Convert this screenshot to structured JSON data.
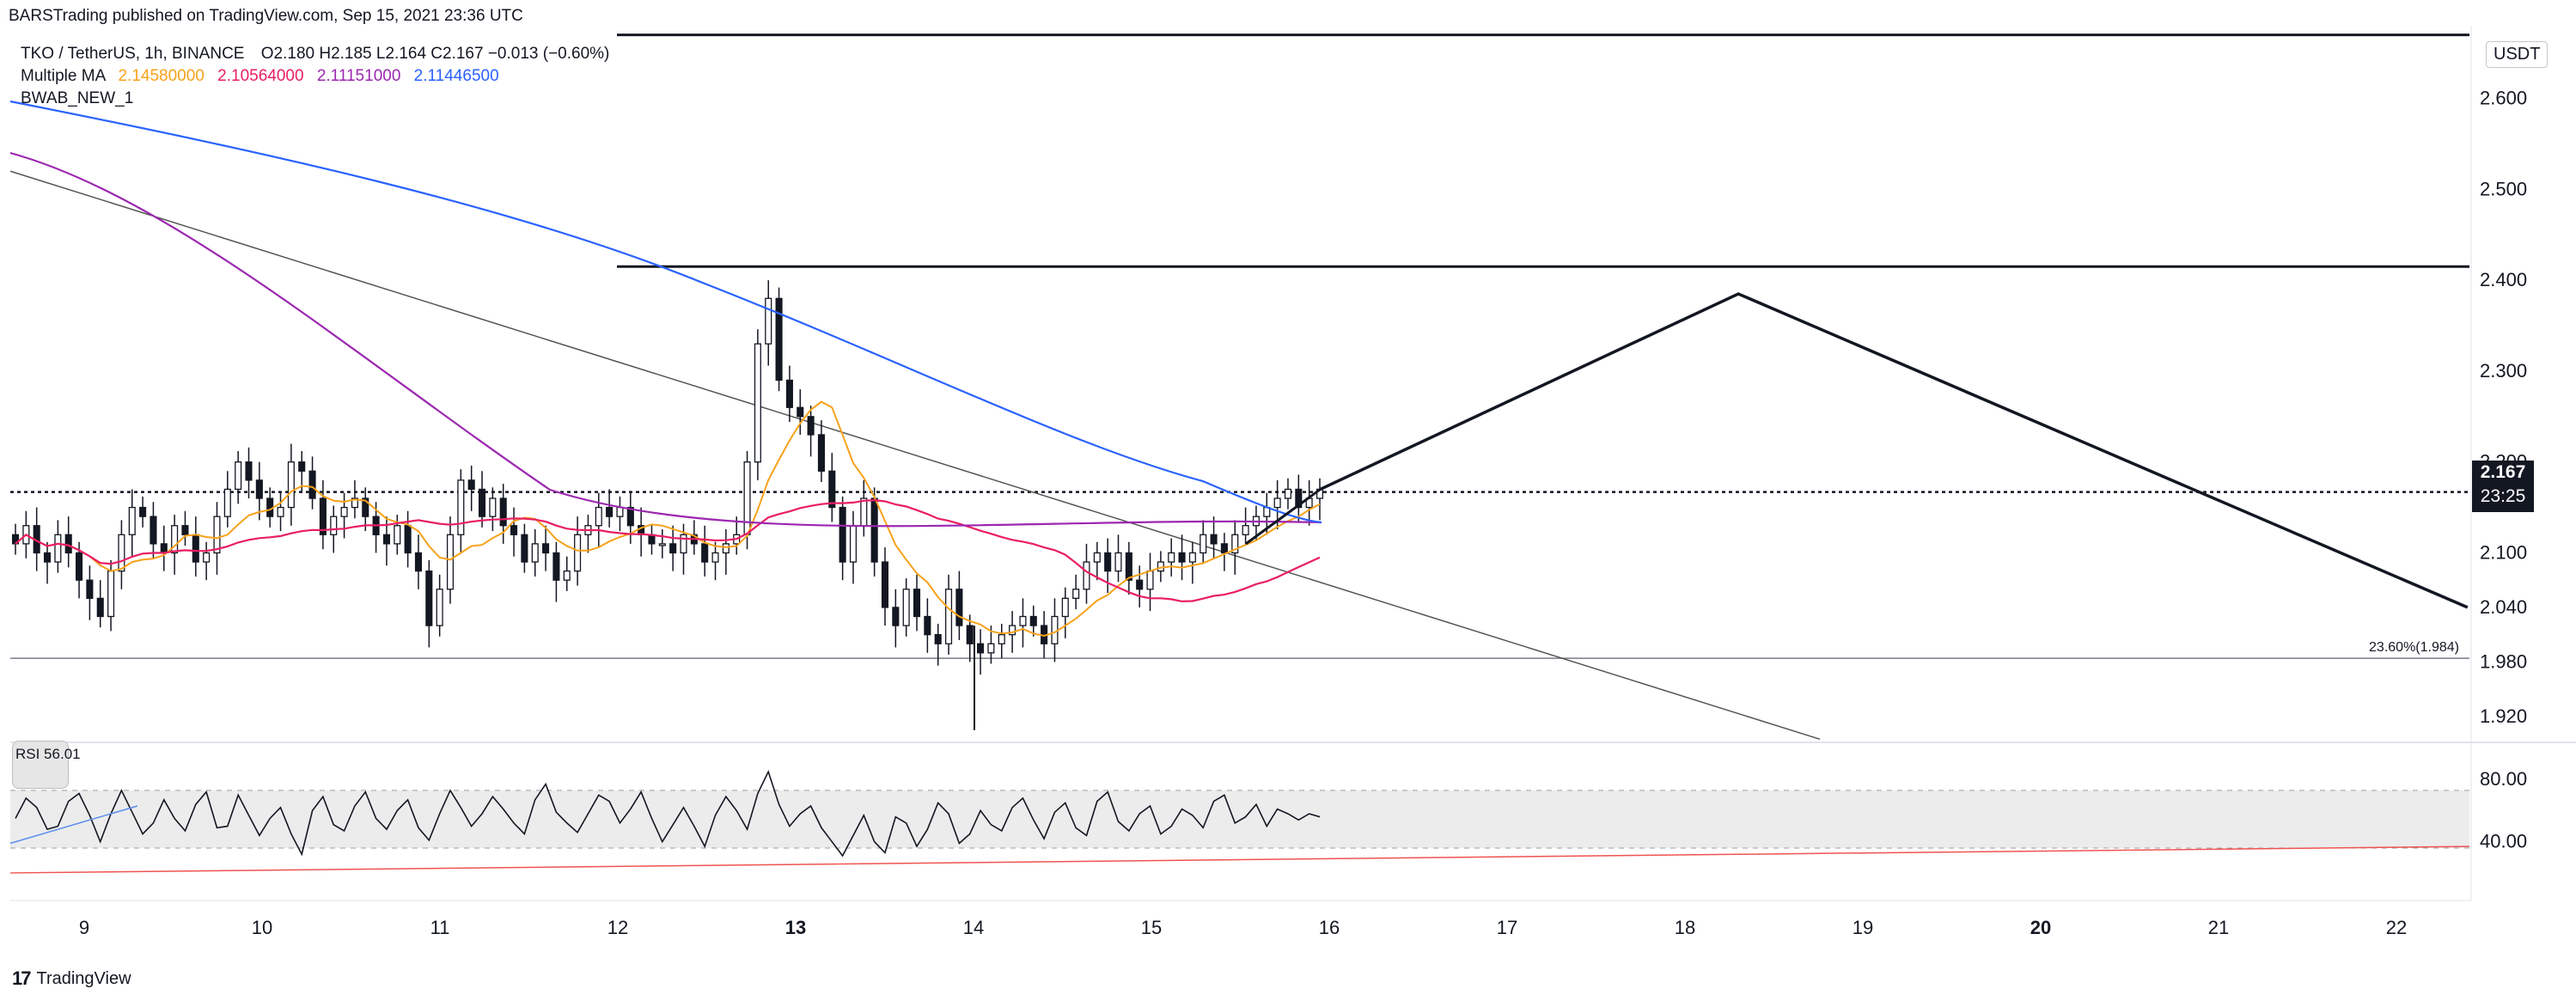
{
  "publisher_line": "BARSTrading published on TradingView.com, Sep 15, 2021 23:36 UTC",
  "symbol": {
    "name": "TKO / TetherUS, 1h, BINANCE",
    "ohlc": "O2.180 H2.185 L2.164 C2.167 −0.013 (−0.60%)"
  },
  "multiple_ma": {
    "label": "Multiple MA",
    "values": [
      "2.14580000",
      "2.10564000",
      "2.11151000",
      "2.11446500"
    ],
    "colors": [
      "#f7a21b",
      "#e91e63",
      "#9c27b0",
      "#2962ff"
    ]
  },
  "indicator_label": "BWAB_NEW_1",
  "rsi_label": "RSI 56.01",
  "currency": "USDT",
  "last_price": {
    "value": "2.167",
    "countdown": "23:25"
  },
  "fib_label": "23.60%(1.984)",
  "brand": {
    "mark": "17",
    "name": "TradingView"
  },
  "colors": {
    "ema_short": "#f7a21b",
    "ma_mid": "#e91e63",
    "ma_long": "#9c27b0",
    "ma_longest": "#2962ff",
    "candle": "#131722",
    "rsi_band": "#ececec"
  },
  "chart_data": [
    {
      "type": "candlestick",
      "x_axis": {
        "tick_labels": [
          "9",
          "10",
          "11",
          "12",
          "13",
          "14",
          "15",
          "16",
          "17",
          "18",
          "19",
          "20",
          "21",
          "22"
        ],
        "bold_ticks": [
          "13",
          "20"
        ]
      },
      "y_axis": {
        "tick_labels": [
          "2.600",
          "2.500",
          "2.400",
          "2.300",
          "2.200",
          "2.100",
          "2.040",
          "1.980",
          "1.920"
        ],
        "ylim": [
          1.9,
          2.68
        ],
        "unit": "USDT"
      },
      "close_series": [
        2.11,
        2.13,
        2.1,
        2.09,
        2.12,
        2.1,
        2.07,
        2.05,
        2.03,
        2.08,
        2.12,
        2.15,
        2.14,
        2.11,
        2.1,
        2.13,
        2.12,
        2.09,
        2.1,
        2.14,
        2.17,
        2.2,
        2.18,
        2.16,
        2.14,
        2.15,
        2.2,
        2.19,
        2.16,
        2.12,
        2.14,
        2.15,
        2.16,
        2.14,
        2.12,
        2.11,
        2.13,
        2.1,
        2.08,
        2.02,
        2.06,
        2.12,
        2.18,
        2.17,
        2.14,
        2.16,
        2.13,
        2.12,
        2.09,
        2.11,
        2.1,
        2.07,
        2.08,
        2.12,
        2.13,
        2.15,
        2.14,
        2.15,
        2.13,
        2.12,
        2.11,
        2.11,
        2.1,
        2.12,
        2.11,
        2.09,
        2.1,
        2.11,
        2.12,
        2.2,
        2.33,
        2.38,
        2.29,
        2.26,
        2.25,
        2.23,
        2.19,
        2.15,
        2.09,
        2.13,
        2.16,
        2.09,
        2.04,
        2.02,
        2.06,
        2.03,
        2.01,
        2.0,
        2.06,
        2.02,
        2.0,
        1.99,
        2.0,
        2.01,
        2.02,
        2.03,
        2.02,
        2.0,
        2.03,
        2.05,
        2.06,
        2.09,
        2.1,
        2.08,
        2.1,
        2.07,
        2.06,
        2.08,
        2.09,
        2.1,
        2.09,
        2.1,
        2.12,
        2.11,
        2.1,
        2.12,
        2.13,
        2.14,
        2.15,
        2.16,
        2.17,
        2.15,
        2.16,
        2.17
      ],
      "moving_averages": [
        {
          "name": "2.14580000",
          "color": "#f7a21b"
        },
        {
          "name": "2.10564000",
          "color": "#e91e63"
        },
        {
          "name": "2.11151000",
          "color": "#9c27b0"
        },
        {
          "name": "2.11446500",
          "color": "#2962ff"
        }
      ],
      "horizontal_levels": [
        2.67,
        2.415,
        2.167,
        1.984
      ],
      "projection_path": [
        [
          "15.95",
          2.17
        ],
        [
          "18.3",
          2.385
        ],
        [
          "22.4",
          2.04
        ]
      ],
      "fib_level": {
        "label": "23.60%(1.984)",
        "value": 1.984
      }
    },
    {
      "type": "line",
      "name": "RSI",
      "y_axis": {
        "tick_labels": [
          "80.00",
          "40.00"
        ],
        "band": [
          36,
          73
        ]
      },
      "current": 56.01,
      "values": [
        55,
        68,
        62,
        48,
        50,
        66,
        71,
        57,
        40,
        58,
        73,
        59,
        45,
        52,
        67,
        55,
        47,
        64,
        72,
        49,
        50,
        70,
        57,
        44,
        55,
        62,
        45,
        32,
        60,
        69,
        51,
        47,
        63,
        72,
        55,
        48,
        60,
        67,
        49,
        41,
        58,
        73,
        62,
        50,
        58,
        69,
        61,
        52,
        45,
        67,
        77,
        59,
        52,
        46,
        58,
        70,
        66,
        52,
        61,
        72,
        55,
        40,
        51,
        62,
        50,
        37,
        57,
        69,
        60,
        48,
        71,
        85,
        64,
        50,
        58,
        63,
        49,
        40,
        31,
        44,
        57,
        40,
        33,
        56,
        52,
        37,
        48,
        65,
        58,
        39,
        45,
        60,
        51,
        47,
        62,
        68,
        54,
        42,
        59,
        65,
        49,
        44,
        66,
        72,
        53,
        47,
        58,
        63,
        45,
        50,
        61,
        57,
        49,
        66,
        70,
        52,
        56,
        64,
        50,
        61,
        58,
        54,
        58,
        56
      ]
    }
  ]
}
